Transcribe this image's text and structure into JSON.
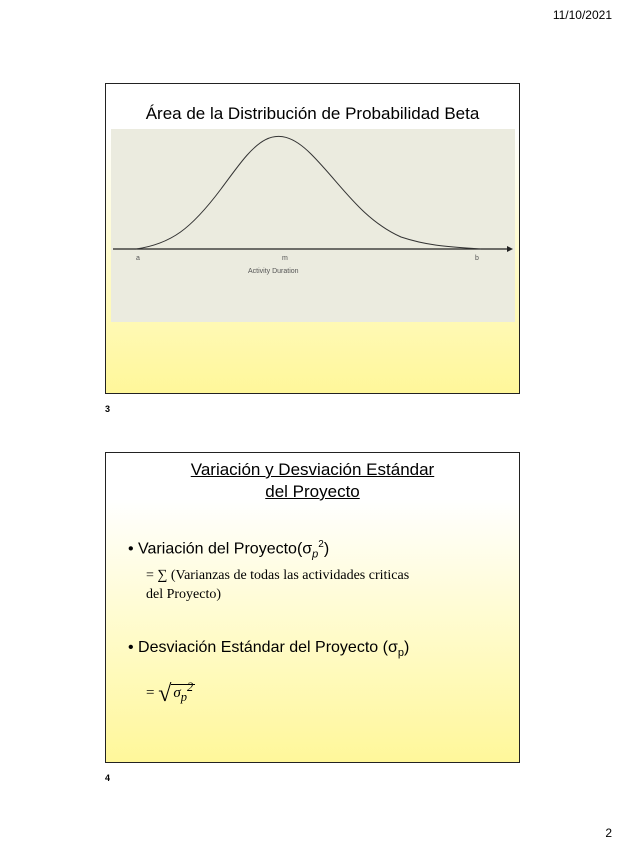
{
  "header": {
    "date": "11/10/2021"
  },
  "footer": {
    "page": "2"
  },
  "slide1": {
    "number": "3",
    "title": "Área de la Distribución de Probabilidad Beta",
    "figure": {
      "x_labels": [
        "a",
        "m",
        "b"
      ],
      "xlabel": "Activity Duration"
    }
  },
  "slide2": {
    "number": "4",
    "title_line1": "Variación y Desviación Estándar",
    "title_line2": "del Proyecto",
    "bullet1": "Variación del Proyecto(σ",
    "bullet1_sub": "p",
    "bullet1_sup": "2",
    "bullet1_close": ")",
    "formula1_line1": "= ∑ (Varianzas de todas las actividades criticas",
    "formula1_line2": "del Proyecto)",
    "bullet2": "Desviación Estándar del Proyecto (σ",
    "bullet2_sub": "p",
    "bullet2_close": ")",
    "formula2_eq": "=",
    "formula2_sigma": "σ",
    "formula2_sub": "p",
    "formula2_sup": "2"
  }
}
